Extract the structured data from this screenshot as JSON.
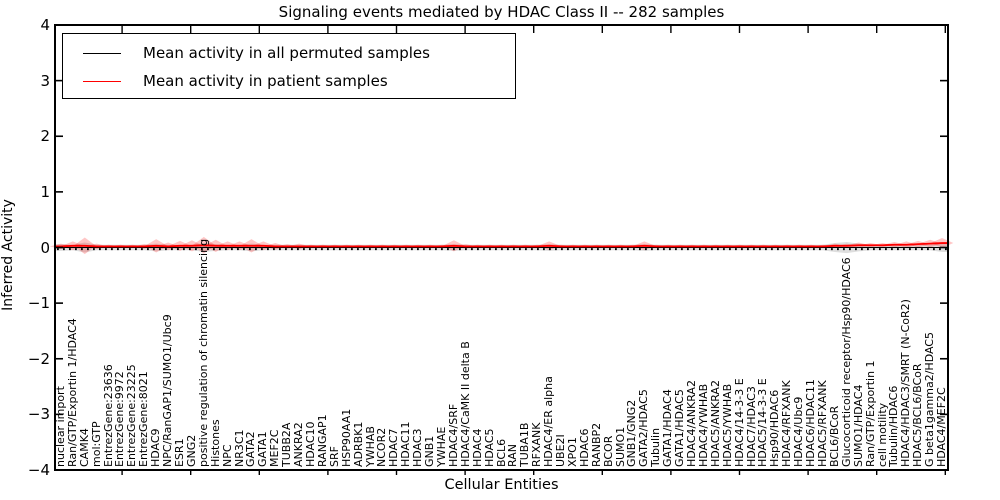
{
  "figure": {
    "title": "Signaling events mediated by HDAC Class II -- 282 samples"
  },
  "axes": {
    "xlabel": "Cellular Entities",
    "ylabel": "Inferred Activity",
    "ytick_labels": [
      "4",
      "3",
      "2",
      "1",
      "0",
      "−1",
      "−2",
      "−3",
      "−4"
    ]
  },
  "legend": {
    "entries": [
      {
        "label": "Mean activity in all permuted samples",
        "color": "#000000"
      },
      {
        "label": "Mean activity in patient samples",
        "color": "#ff0000"
      }
    ]
  },
  "chart_data": {
    "type": "line",
    "title": "Signaling events mediated by HDAC Class II -- 282 samples",
    "xlabel": "Cellular Entities",
    "ylabel": "Inferred Activity",
    "ylim": [
      -4,
      4
    ],
    "yticks": [
      4,
      3,
      2,
      1,
      0,
      -1,
      -2,
      -3,
      -4
    ],
    "grid": false,
    "legend_position": "upper left",
    "categories": [
      "nuclear import",
      "Ran/GTP/Exportin 1/HDAC4",
      "CAMK4",
      "mol:GTP",
      "EntrezGene:23636",
      "EntrezGene:9972",
      "EntrezGene:23225",
      "EntrezGene:8021",
      "HDAC9",
      "NPC/RanGAP1/SUMO1/Ubc9",
      "ESR1",
      "GNG2",
      "positive regulation of chromatin silencing",
      "Histones",
      "NPC",
      "NR3C1",
      "GATA2",
      "GATA1",
      "MEF2C",
      "TUBB2A",
      "ANKRA2",
      "HDAC10",
      "RANGAP1",
      "SRF",
      "HSP90AA1",
      "ADRBK1",
      "YWHAB",
      "NCOR2",
      "HDAC7",
      "HDAC11",
      "HDAC3",
      "GNB1",
      "YWHAE",
      "HDAC4/SRF",
      "HDAC4/CaMK II delta B",
      "HDAC4",
      "HDAC5",
      "BCL6",
      "RAN",
      "TUBA1B",
      "RFXANK",
      "HDAC4/ER alpha",
      "UBE2I",
      "XPO1",
      "HDAC6",
      "RANBP2",
      "BCOR",
      "SUMO1",
      "GNB1/GNG2",
      "GATA2/HDAC5",
      "Tubulin",
      "GATA1/HDAC4",
      "GATA1/HDAC5",
      "HDAC4/ANKRA2",
      "HDAC4/YWHAB",
      "HDAC5/ANKRA2",
      "HDAC5/YWHAB",
      "HDAC4/14-3-3 E",
      "HDAC7/HDAC3",
      "HDAC5/14-3-3 E",
      "Hsp90/HDAC6",
      "HDAC4/RFXANK",
      "HDAC4/Ubc9",
      "HDAC6/HDAC11",
      "HDAC5/RFXANK",
      "BCL6/BCoR",
      "Glucocorticoid receptor/Hsp90/HDAC6",
      "SUMO1/HDAC4",
      "Ran/GTP/Exportin 1",
      "cell motility",
      "Tubulin/HDAC6",
      "HDAC4/HDAC3/SMRT (N-CoR2)",
      "HDAC5/BCL6/BCoR",
      "G beta1gamma2/HDAC5",
      "HDAC4/MEF2C"
    ],
    "series": [
      {
        "name": "Mean activity in all permuted samples",
        "color": "#000000",
        "line_style": "dotted",
        "constant_value": 0,
        "band_color": "#d3d3d3",
        "band_halfwidths": [
          0.06,
          0.05,
          0.09,
          0.05,
          0.05,
          0.05,
          0.05,
          0.05,
          0.07,
          0.05,
          0.05,
          0.05,
          0.08,
          0.06,
          0.05,
          0.05,
          0.07,
          0.05,
          0.05,
          0.05,
          0.05,
          0.05,
          0.05,
          0.05,
          0.05,
          0.05,
          0.05,
          0.05,
          0.05,
          0.05,
          0.05,
          0.05,
          0.05,
          0.06,
          0.05,
          0.05,
          0.05,
          0.05,
          0.05,
          0.05,
          0.05,
          0.06,
          0.05,
          0.05,
          0.05,
          0.05,
          0.05,
          0.05,
          0.05,
          0.06,
          0.05,
          0.05,
          0.05,
          0.05,
          0.05,
          0.05,
          0.05,
          0.05,
          0.05,
          0.05,
          0.05,
          0.05,
          0.05,
          0.05,
          0.05,
          0.08,
          0.1,
          0.07,
          0.05,
          0.05,
          0.05,
          0.05,
          0.05,
          0.05,
          0.08
        ]
      },
      {
        "name": "Mean activity in patient samples",
        "color": "#ff0000",
        "line_style": "solid",
        "values": [
          0.02,
          0.03,
          0.03,
          0.02,
          0.02,
          0.02,
          0.02,
          0.02,
          0.03,
          0.02,
          0.03,
          0.03,
          0.04,
          0.03,
          0.03,
          0.03,
          0.03,
          0.03,
          0.02,
          0.02,
          0.02,
          0.02,
          0.02,
          0.02,
          0.02,
          0.02,
          0.02,
          0.02,
          0.02,
          0.02,
          0.02,
          0.02,
          0.02,
          0.03,
          0.02,
          0.02,
          0.02,
          0.02,
          0.02,
          0.02,
          0.02,
          0.03,
          0.02,
          0.02,
          0.02,
          0.02,
          0.02,
          0.02,
          0.02,
          0.03,
          0.02,
          0.02,
          0.02,
          0.02,
          0.02,
          0.02,
          0.02,
          0.02,
          0.02,
          0.02,
          0.02,
          0.02,
          0.02,
          0.02,
          0.02,
          0.03,
          0.03,
          0.04,
          0.04,
          0.04,
          0.05,
          0.05,
          0.06,
          0.07,
          0.08
        ],
        "band_color": "#ff0000",
        "band_halfwidths": [
          0.05,
          0.08,
          0.15,
          0.05,
          0.03,
          0.03,
          0.03,
          0.04,
          0.12,
          0.07,
          0.09,
          0.1,
          0.15,
          0.11,
          0.08,
          0.08,
          0.12,
          0.08,
          0.06,
          0.04,
          0.05,
          0.03,
          0.03,
          0.03,
          0.03,
          0.03,
          0.03,
          0.03,
          0.03,
          0.03,
          0.03,
          0.03,
          0.03,
          0.1,
          0.04,
          0.03,
          0.03,
          0.03,
          0.03,
          0.03,
          0.03,
          0.08,
          0.03,
          0.03,
          0.03,
          0.03,
          0.03,
          0.03,
          0.03,
          0.08,
          0.03,
          0.03,
          0.03,
          0.03,
          0.03,
          0.03,
          0.03,
          0.03,
          0.03,
          0.03,
          0.03,
          0.03,
          0.03,
          0.03,
          0.03,
          0.04,
          0.04,
          0.05,
          0.04,
          0.04,
          0.05,
          0.06,
          0.06,
          0.07,
          0.09
        ]
      }
    ]
  }
}
